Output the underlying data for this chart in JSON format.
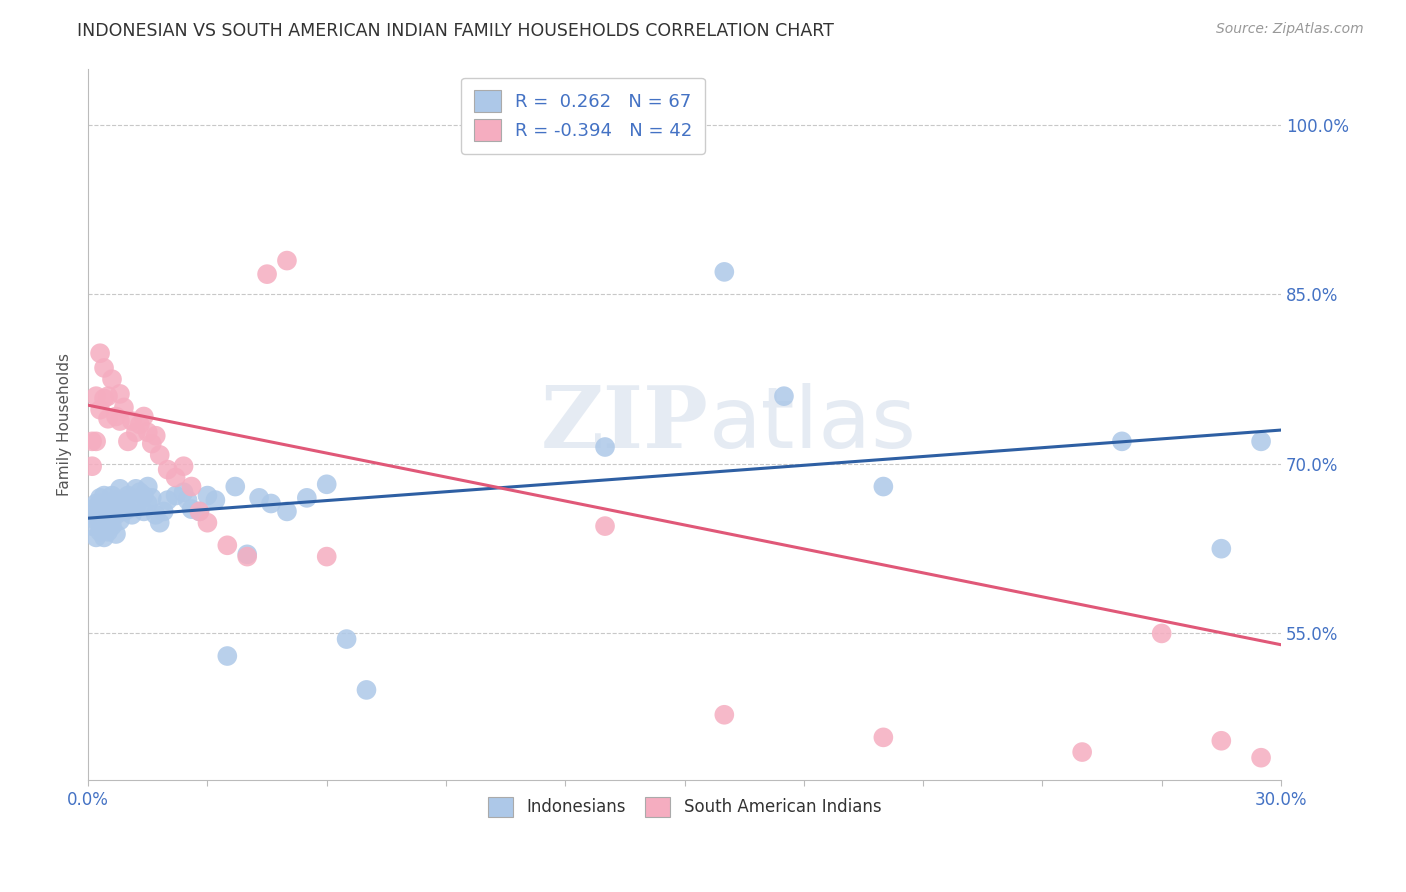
{
  "title": "INDONESIAN VS SOUTH AMERICAN INDIAN FAMILY HOUSEHOLDS CORRELATION CHART",
  "source": "Source: ZipAtlas.com",
  "ylabel": "Family Households",
  "watermark_zip": "ZIP",
  "watermark_atlas": "atlas",
  "blue_R": 0.262,
  "blue_N": 67,
  "pink_R": -0.394,
  "pink_N": 42,
  "blue_color": "#adc8e8",
  "pink_color": "#f5adc0",
  "blue_line_color": "#2e5fa3",
  "pink_line_color": "#e05878",
  "ytick_labels": [
    "55.0%",
    "70.0%",
    "85.0%",
    "100.0%"
  ],
  "ytick_values": [
    0.55,
    0.7,
    0.85,
    1.0
  ],
  "xlim": [
    0.0,
    0.3
  ],
  "ylim": [
    0.42,
    1.05
  ],
  "legend_label_blue": "Indonesians",
  "legend_label_pink": "South American Indians",
  "blue_line_x0": 0.0,
  "blue_line_y0": 0.652,
  "blue_line_x1": 0.3,
  "blue_line_y1": 0.73,
  "pink_line_x0": 0.0,
  "pink_line_y0": 0.752,
  "pink_line_x1": 0.3,
  "pink_line_y1": 0.54,
  "blue_points_x": [
    0.001,
    0.001,
    0.001,
    0.002,
    0.002,
    0.002,
    0.003,
    0.003,
    0.003,
    0.003,
    0.004,
    0.004,
    0.004,
    0.005,
    0.005,
    0.005,
    0.006,
    0.006,
    0.006,
    0.007,
    0.007,
    0.007,
    0.008,
    0.008,
    0.008,
    0.009,
    0.009,
    0.01,
    0.01,
    0.011,
    0.011,
    0.012,
    0.012,
    0.013,
    0.014,
    0.014,
    0.015,
    0.015,
    0.016,
    0.017,
    0.018,
    0.019,
    0.02,
    0.022,
    0.024,
    0.025,
    0.026,
    0.028,
    0.03,
    0.032,
    0.035,
    0.037,
    0.04,
    0.043,
    0.046,
    0.05,
    0.055,
    0.06,
    0.065,
    0.07,
    0.13,
    0.16,
    0.175,
    0.2,
    0.26,
    0.285,
    0.295
  ],
  "blue_points_y": [
    0.655,
    0.645,
    0.66,
    0.65,
    0.635,
    0.665,
    0.64,
    0.65,
    0.665,
    0.67,
    0.635,
    0.658,
    0.672,
    0.648,
    0.662,
    0.64,
    0.645,
    0.66,
    0.672,
    0.638,
    0.655,
    0.668,
    0.65,
    0.665,
    0.678,
    0.658,
    0.668,
    0.66,
    0.672,
    0.655,
    0.668,
    0.662,
    0.678,
    0.675,
    0.658,
    0.672,
    0.665,
    0.68,
    0.67,
    0.655,
    0.648,
    0.658,
    0.668,
    0.672,
    0.675,
    0.668,
    0.66,
    0.658,
    0.672,
    0.668,
    0.53,
    0.68,
    0.62,
    0.67,
    0.665,
    0.658,
    0.67,
    0.682,
    0.545,
    0.5,
    0.715,
    0.87,
    0.76,
    0.68,
    0.72,
    0.625,
    0.72
  ],
  "pink_points_x": [
    0.001,
    0.001,
    0.002,
    0.002,
    0.003,
    0.003,
    0.004,
    0.004,
    0.005,
    0.005,
    0.006,
    0.007,
    0.008,
    0.008,
    0.009,
    0.01,
    0.011,
    0.012,
    0.013,
    0.014,
    0.015,
    0.016,
    0.017,
    0.018,
    0.02,
    0.022,
    0.024,
    0.026,
    0.028,
    0.03,
    0.035,
    0.04,
    0.045,
    0.05,
    0.06,
    0.13,
    0.16,
    0.2,
    0.25,
    0.27,
    0.285,
    0.295
  ],
  "pink_points_y": [
    0.72,
    0.698,
    0.76,
    0.72,
    0.798,
    0.748,
    0.758,
    0.785,
    0.74,
    0.76,
    0.775,
    0.742,
    0.762,
    0.738,
    0.75,
    0.72,
    0.738,
    0.728,
    0.735,
    0.742,
    0.728,
    0.718,
    0.725,
    0.708,
    0.695,
    0.688,
    0.698,
    0.68,
    0.658,
    0.648,
    0.628,
    0.618,
    0.868,
    0.88,
    0.618,
    0.645,
    0.478,
    0.458,
    0.445,
    0.55,
    0.455,
    0.44
  ]
}
